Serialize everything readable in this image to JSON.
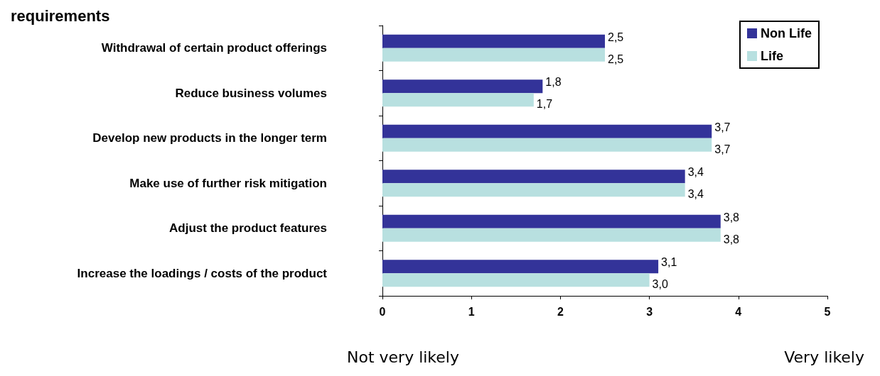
{
  "chart_data": {
    "type": "bar",
    "orientation": "horizontal",
    "title": "requirements",
    "categories": [
      "Withdrawal of certain product offerings",
      "Reduce business volumes",
      "Develop new products in the longer term",
      "Make use of further risk mitigation",
      "Adjust the product features",
      "Increase the loadings / costs of the product"
    ],
    "series": [
      {
        "name": "Non Life",
        "color": "#333399",
        "values": [
          2.5,
          1.8,
          3.7,
          3.4,
          3.8,
          3.1
        ],
        "value_labels": [
          "2,5",
          "1,8",
          "3,7",
          "3,4",
          "3,8",
          "3,1"
        ]
      },
      {
        "name": "Life",
        "color": "#b8e0e0",
        "values": [
          2.5,
          1.7,
          3.7,
          3.4,
          3.8,
          3.0
        ],
        "value_labels": [
          "2,5",
          "1,7",
          "3,7",
          "3,4",
          "3,8",
          "3,0"
        ]
      }
    ],
    "xlim": [
      0,
      5
    ],
    "xticks": [
      0,
      1,
      2,
      3,
      4,
      5
    ],
    "grid": false,
    "legend": "top right",
    "annotations": [
      "Not very likely",
      "Very likely"
    ]
  }
}
